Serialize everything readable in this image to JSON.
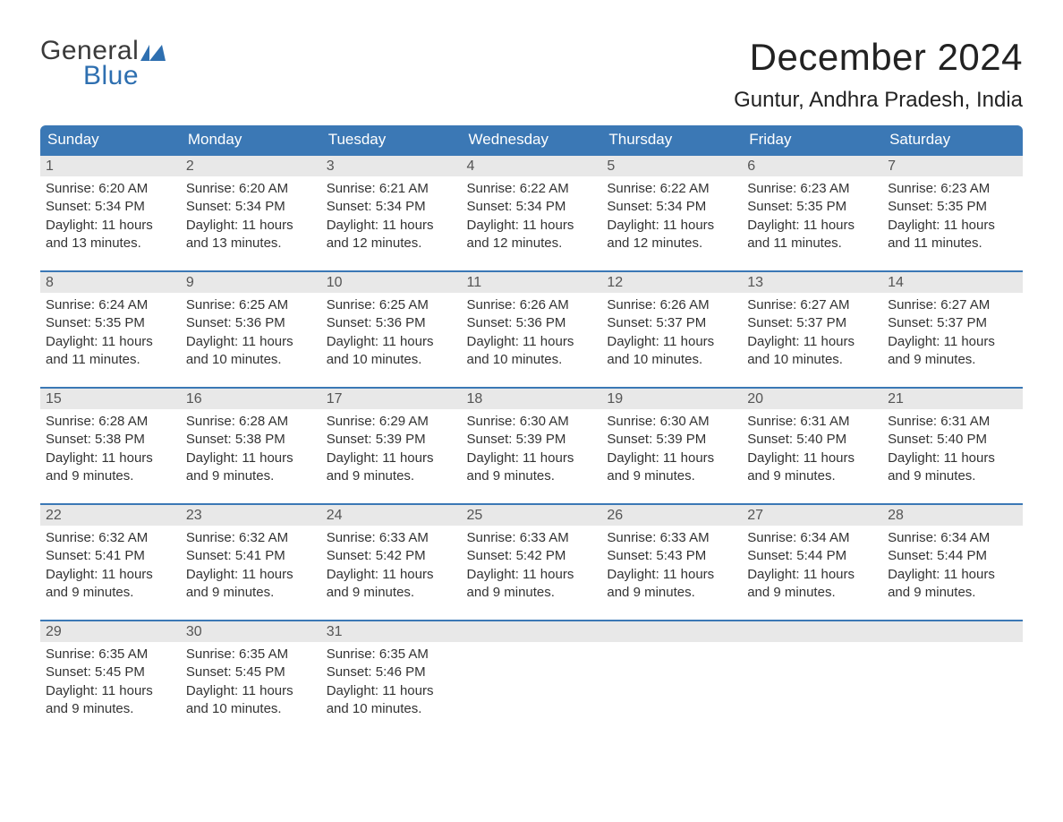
{
  "logo": {
    "text1": "General",
    "text2": "Blue",
    "icon_name": "flag-icon",
    "icon_color": "#2e6fb0",
    "text1_color": "#3a3a3a",
    "text2_color": "#2e6fb0"
  },
  "title": "December 2024",
  "location": "Guntur, Andhra Pradesh, India",
  "colors": {
    "header_bg": "#3b78b5",
    "header_text": "#ffffff",
    "date_strip_bg": "#e8e8e8",
    "date_strip_border": "#3b78b5",
    "body_text": "#333333",
    "background": "#ffffff"
  },
  "fonts": {
    "title_size_pt": 32,
    "location_size_pt": 18,
    "header_size_pt": 13,
    "cell_size_pt": 11
  },
  "day_headers": [
    "Sunday",
    "Monday",
    "Tuesday",
    "Wednesday",
    "Thursday",
    "Friday",
    "Saturday"
  ],
  "weeks": [
    [
      {
        "date": "1",
        "sunrise": "6:20 AM",
        "sunset": "5:34 PM",
        "daylight": "11 hours and 13 minutes."
      },
      {
        "date": "2",
        "sunrise": "6:20 AM",
        "sunset": "5:34 PM",
        "daylight": "11 hours and 13 minutes."
      },
      {
        "date": "3",
        "sunrise": "6:21 AM",
        "sunset": "5:34 PM",
        "daylight": "11 hours and 12 minutes."
      },
      {
        "date": "4",
        "sunrise": "6:22 AM",
        "sunset": "5:34 PM",
        "daylight": "11 hours and 12 minutes."
      },
      {
        "date": "5",
        "sunrise": "6:22 AM",
        "sunset": "5:34 PM",
        "daylight": "11 hours and 12 minutes."
      },
      {
        "date": "6",
        "sunrise": "6:23 AM",
        "sunset": "5:35 PM",
        "daylight": "11 hours and 11 minutes."
      },
      {
        "date": "7",
        "sunrise": "6:23 AM",
        "sunset": "5:35 PM",
        "daylight": "11 hours and 11 minutes."
      }
    ],
    [
      {
        "date": "8",
        "sunrise": "6:24 AM",
        "sunset": "5:35 PM",
        "daylight": "11 hours and 11 minutes."
      },
      {
        "date": "9",
        "sunrise": "6:25 AM",
        "sunset": "5:36 PM",
        "daylight": "11 hours and 10 minutes."
      },
      {
        "date": "10",
        "sunrise": "6:25 AM",
        "sunset": "5:36 PM",
        "daylight": "11 hours and 10 minutes."
      },
      {
        "date": "11",
        "sunrise": "6:26 AM",
        "sunset": "5:36 PM",
        "daylight": "11 hours and 10 minutes."
      },
      {
        "date": "12",
        "sunrise": "6:26 AM",
        "sunset": "5:37 PM",
        "daylight": "11 hours and 10 minutes."
      },
      {
        "date": "13",
        "sunrise": "6:27 AM",
        "sunset": "5:37 PM",
        "daylight": "11 hours and 10 minutes."
      },
      {
        "date": "14",
        "sunrise": "6:27 AM",
        "sunset": "5:37 PM",
        "daylight": "11 hours and 9 minutes."
      }
    ],
    [
      {
        "date": "15",
        "sunrise": "6:28 AM",
        "sunset": "5:38 PM",
        "daylight": "11 hours and 9 minutes."
      },
      {
        "date": "16",
        "sunrise": "6:28 AM",
        "sunset": "5:38 PM",
        "daylight": "11 hours and 9 minutes."
      },
      {
        "date": "17",
        "sunrise": "6:29 AM",
        "sunset": "5:39 PM",
        "daylight": "11 hours and 9 minutes."
      },
      {
        "date": "18",
        "sunrise": "6:30 AM",
        "sunset": "5:39 PM",
        "daylight": "11 hours and 9 minutes."
      },
      {
        "date": "19",
        "sunrise": "6:30 AM",
        "sunset": "5:39 PM",
        "daylight": "11 hours and 9 minutes."
      },
      {
        "date": "20",
        "sunrise": "6:31 AM",
        "sunset": "5:40 PM",
        "daylight": "11 hours and 9 minutes."
      },
      {
        "date": "21",
        "sunrise": "6:31 AM",
        "sunset": "5:40 PM",
        "daylight": "11 hours and 9 minutes."
      }
    ],
    [
      {
        "date": "22",
        "sunrise": "6:32 AM",
        "sunset": "5:41 PM",
        "daylight": "11 hours and 9 minutes."
      },
      {
        "date": "23",
        "sunrise": "6:32 AM",
        "sunset": "5:41 PM",
        "daylight": "11 hours and 9 minutes."
      },
      {
        "date": "24",
        "sunrise": "6:33 AM",
        "sunset": "5:42 PM",
        "daylight": "11 hours and 9 minutes."
      },
      {
        "date": "25",
        "sunrise": "6:33 AM",
        "sunset": "5:42 PM",
        "daylight": "11 hours and 9 minutes."
      },
      {
        "date": "26",
        "sunrise": "6:33 AM",
        "sunset": "5:43 PM",
        "daylight": "11 hours and 9 minutes."
      },
      {
        "date": "27",
        "sunrise": "6:34 AM",
        "sunset": "5:44 PM",
        "daylight": "11 hours and 9 minutes."
      },
      {
        "date": "28",
        "sunrise": "6:34 AM",
        "sunset": "5:44 PM",
        "daylight": "11 hours and 9 minutes."
      }
    ],
    [
      {
        "date": "29",
        "sunrise": "6:35 AM",
        "sunset": "5:45 PM",
        "daylight": "11 hours and 9 minutes."
      },
      {
        "date": "30",
        "sunrise": "6:35 AM",
        "sunset": "5:45 PM",
        "daylight": "11 hours and 10 minutes."
      },
      {
        "date": "31",
        "sunrise": "6:35 AM",
        "sunset": "5:46 PM",
        "daylight": "11 hours and 10 minutes."
      },
      null,
      null,
      null,
      null
    ]
  ],
  "labels": {
    "sunrise": "Sunrise:",
    "sunset": "Sunset:",
    "daylight": "Daylight:"
  }
}
